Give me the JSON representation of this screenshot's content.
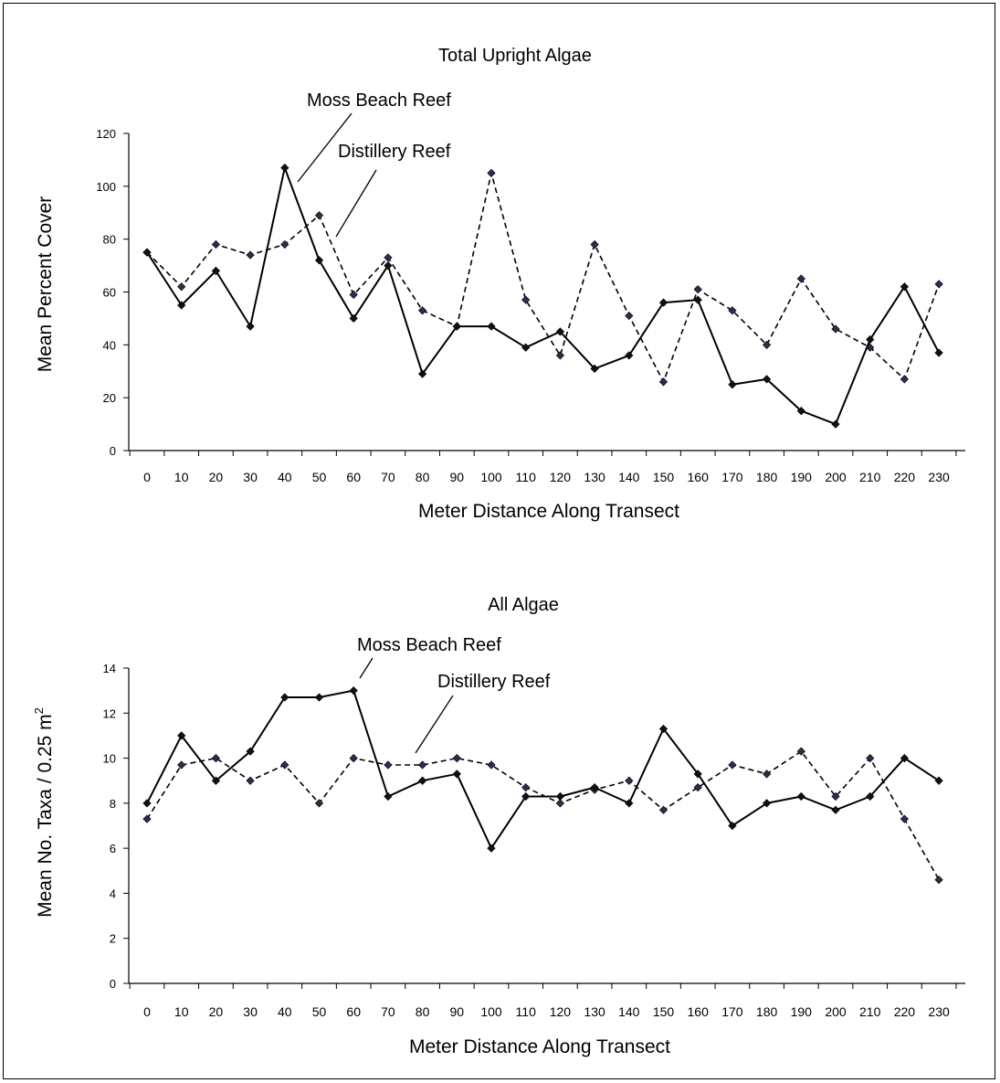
{
  "chart_data": [
    {
      "type": "line",
      "title": "Total Upright Algae",
      "xlabel": "Meter Distance Along Transect",
      "ylabel": "Mean Percent Cover",
      "ylim": [
        0,
        120
      ],
      "yticks": [
        "0",
        "20",
        "40",
        "60",
        "80",
        "100",
        "120"
      ],
      "categories": [
        "0",
        "10",
        "20",
        "30",
        "40",
        "50",
        "60",
        "70",
        "80",
        "90",
        "100",
        "110",
        "120",
        "130",
        "140",
        "150",
        "160",
        "170",
        "180",
        "190",
        "200",
        "210",
        "220",
        "230"
      ],
      "series": [
        {
          "name": "Moss Beach Reef",
          "style": "solid",
          "color": "#000000",
          "values": [
            75,
            55,
            68,
            47,
            107,
            72,
            50,
            70,
            29,
            47,
            47,
            39,
            45,
            31,
            36,
            56,
            57,
            25,
            27,
            15,
            10,
            42,
            62,
            37
          ]
        },
        {
          "name": "Distillery Reef",
          "style": "dashed",
          "color": "#000000",
          "values": [
            75,
            62,
            78,
            74,
            78,
            89,
            59,
            73,
            53,
            47,
            105,
            57,
            36,
            78,
            51,
            26,
            61,
            53,
            40,
            65,
            46,
            39,
            27,
            63
          ]
        }
      ],
      "annotations": [
        "Moss Beach Reef",
        "Distillery Reef"
      ],
      "grid": false
    },
    {
      "type": "line",
      "title": "All Algae",
      "xlabel": "Meter Distance Along Transect",
      "ylabel": "Mean No. Taxa / 0.25 m",
      "ylabel_sup": "2",
      "ylim": [
        0,
        14
      ],
      "yticks": [
        "0",
        "2",
        "4",
        "6",
        "8",
        "10",
        "12",
        "14"
      ],
      "categories": [
        "0",
        "10",
        "20",
        "30",
        "40",
        "50",
        "60",
        "70",
        "80",
        "90",
        "100",
        "110",
        "120",
        "130",
        "140",
        "150",
        "160",
        "170",
        "180",
        "190",
        "200",
        "210",
        "220",
        "230"
      ],
      "series": [
        {
          "name": "Moss Beach Reef",
          "style": "solid",
          "color": "#000000",
          "values": [
            8,
            11,
            9,
            10.3,
            12.7,
            12.7,
            13,
            8.3,
            9,
            9.3,
            6,
            8.3,
            8.3,
            8.7,
            8,
            11.3,
            9.3,
            7,
            8,
            8.3,
            7.7,
            8.3,
            10,
            9
          ]
        },
        {
          "name": "Distillery Reef",
          "style": "dashed",
          "color": "#000000",
          "values": [
            7.3,
            9.7,
            10,
            9,
            9.7,
            8,
            10,
            9.7,
            9.7,
            10,
            9.7,
            8.7,
            8,
            8.6,
            9,
            7.7,
            8.7,
            9.7,
            9.3,
            10.3,
            8.3,
            10,
            7.3,
            4.6
          ]
        }
      ],
      "annotations": [
        "Moss Beach Reef",
        "Distillery Reef"
      ],
      "grid": false
    }
  ]
}
